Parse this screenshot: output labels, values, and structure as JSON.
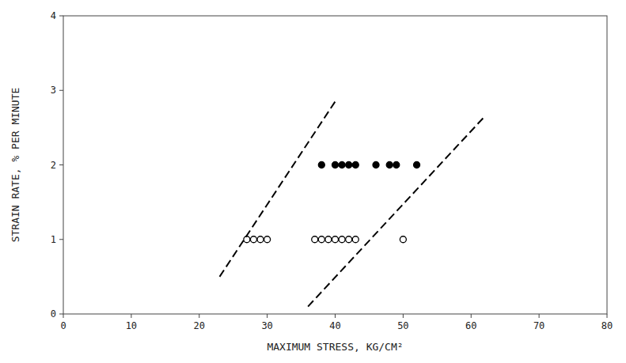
{
  "chart_data": {
    "type": "scatter",
    "xlabel": "MAXIMUM STRESS, KG/CM²",
    "ylabel": "STRAIN RATE, % PER MINUTE",
    "xlim": [
      0,
      80
    ],
    "ylim": [
      0,
      4
    ],
    "xticks": [
      0,
      10,
      20,
      30,
      40,
      50,
      60,
      70,
      80
    ],
    "yticks": [
      0,
      1,
      2,
      3,
      4
    ],
    "grid": false,
    "series": [
      {
        "type": "scatter",
        "marker": "circle",
        "color": "#000000",
        "x": [
          38,
          40,
          41,
          42,
          43,
          46,
          48,
          49,
          52
        ],
        "values": [
          2.0,
          2.0,
          2.0,
          2.0,
          2.0,
          2.0,
          2.0,
          2.0,
          2.0
        ]
      },
      {
        "type": "scatter",
        "marker": "open",
        "color": "#000000",
        "x": [
          27,
          28,
          29,
          30,
          37,
          38,
          39,
          40,
          41,
          42,
          43,
          50
        ],
        "values": [
          1.0,
          1.0,
          1.0,
          1.0,
          1.0,
          1.0,
          1.0,
          1.0,
          1.0,
          1.0,
          1.0,
          1.0
        ]
      },
      {
        "type": "line",
        "line_style": "dashed",
        "color": "#000000",
        "x": [
          23,
          40
        ],
        "values": [
          0.5,
          2.85
        ]
      },
      {
        "type": "line",
        "line_style": "dashed",
        "color": "#000000",
        "x": [
          36,
          62
        ],
        "values": [
          0.1,
          2.65
        ]
      }
    ]
  }
}
